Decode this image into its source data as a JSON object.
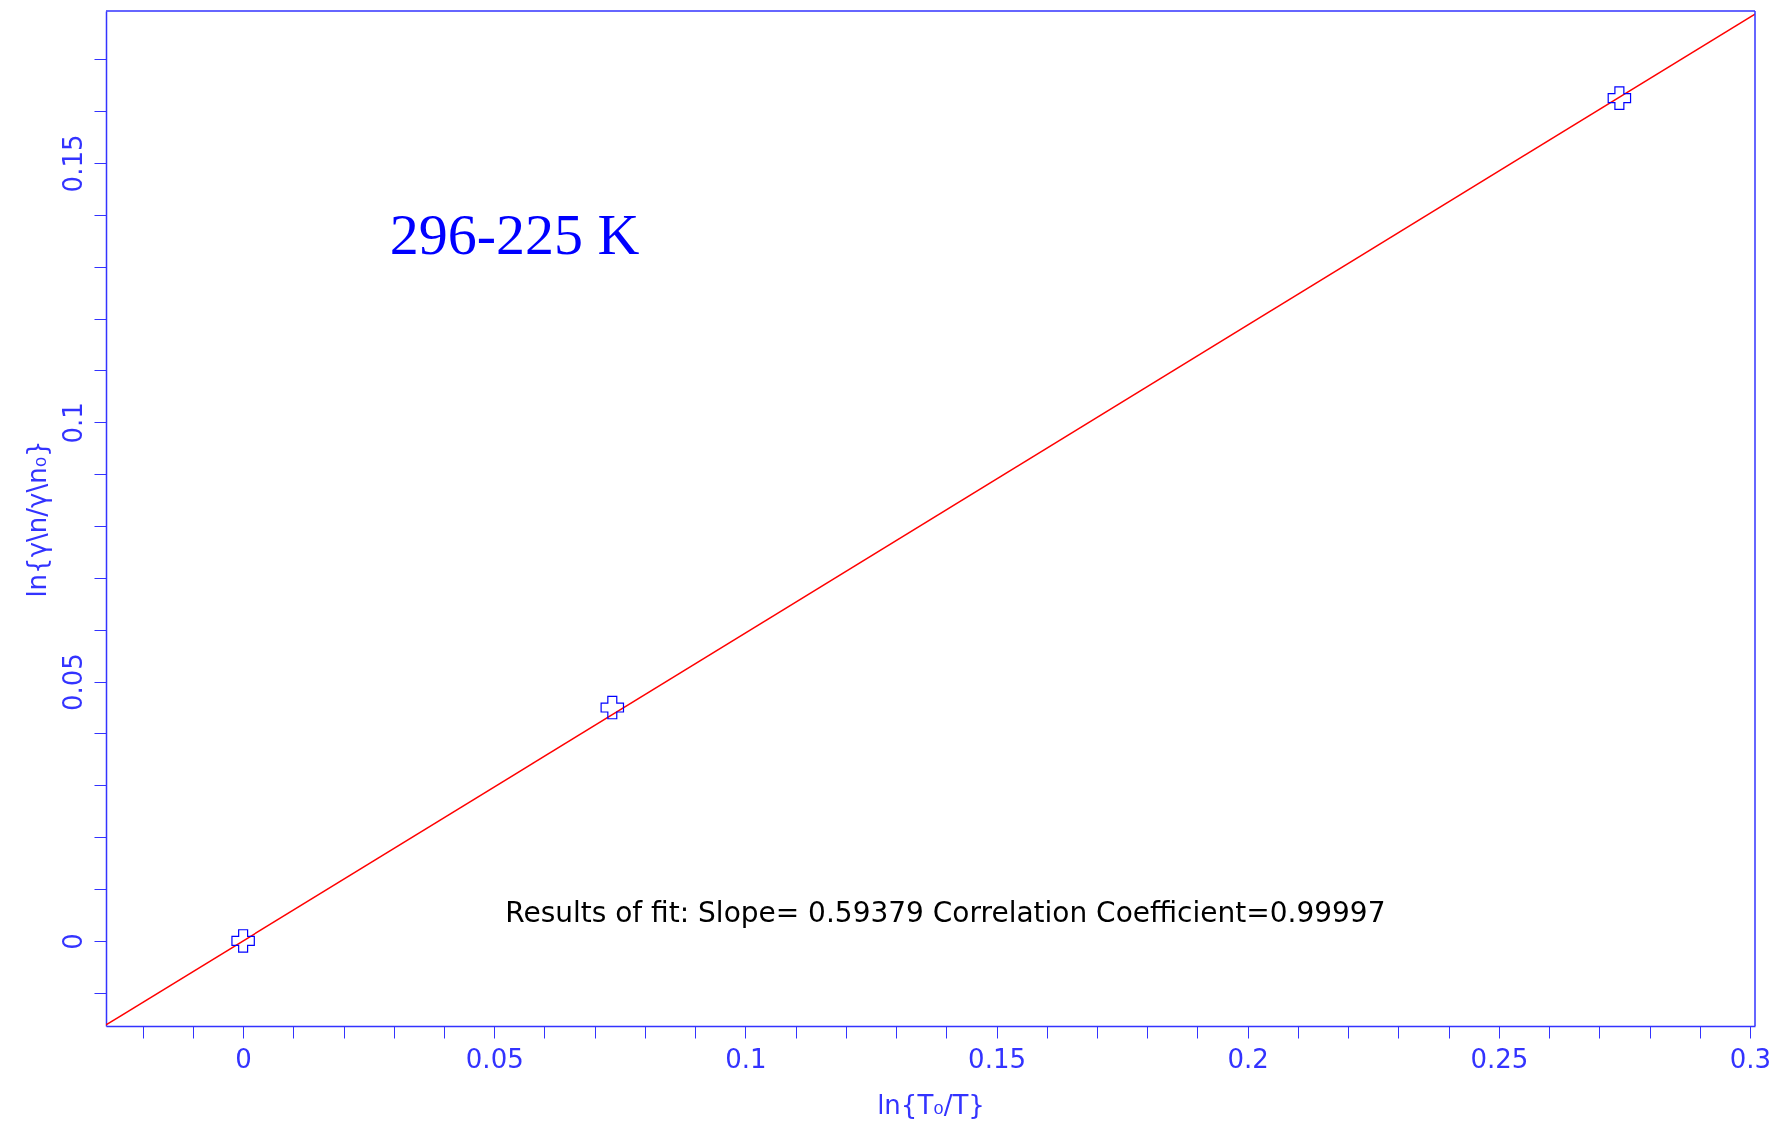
{
  "chart_data": {
    "type": "scatter",
    "xlabel": "ln{T₀/T}",
    "ylabel": "ln{γ\\n/γ\\n₀}",
    "annotations": [
      "296-225 K",
      "Results of fit: Slope=  0.59379  Correlation Coefficient=0.99997"
    ],
    "series": [
      {
        "color": "#0000ff",
        "marker": "cross",
        "x": [
          0,
          0.0735,
          0.274
        ],
        "values": [
          0,
          0.045,
          0.1625
        ]
      },
      {
        "type": "line",
        "color": "#ff0000",
        "line_style": "solid",
        "x": [
          -0.0273,
          0.301
        ],
        "values": [
          -0.0162,
          0.1787
        ]
      }
    ],
    "xlim": [
      -0.0273,
      0.301
    ],
    "ylim": [
      -0.0164,
      0.1793
    ],
    "xticks": [
      {
        "value": -0.02,
        "label": null
      },
      {
        "value": -0.01,
        "label": null
      },
      0,
      {
        "value": 0.01,
        "label": null
      },
      {
        "value": 0.02,
        "label": null
      },
      {
        "value": 0.03,
        "label": null
      },
      {
        "value": 0.04,
        "label": null
      },
      0.05,
      {
        "value": 0.06,
        "label": null
      },
      {
        "value": 0.07,
        "label": null
      },
      {
        "value": 0.08,
        "label": null
      },
      {
        "value": 0.09,
        "label": null
      },
      0.1,
      {
        "value": 0.11,
        "label": null
      },
      {
        "value": 0.12,
        "label": null
      },
      {
        "value": 0.13,
        "label": null
      },
      {
        "value": 0.14,
        "label": null
      },
      0.15,
      {
        "value": 0.16,
        "label": null
      },
      {
        "value": 0.17,
        "label": null
      },
      {
        "value": 0.18,
        "label": null
      },
      {
        "value": 0.19,
        "label": null
      },
      0.2,
      {
        "value": 0.21,
        "label": null
      },
      {
        "value": 0.22,
        "label": null
      },
      {
        "value": 0.23,
        "label": null
      },
      {
        "value": 0.24,
        "label": null
      },
      0.25,
      {
        "value": 0.26,
        "label": null
      },
      {
        "value": 0.27,
        "label": null
      },
      {
        "value": 0.28,
        "label": null
      },
      {
        "value": 0.29,
        "label": null
      },
      0.3
    ],
    "yticks": [
      {
        "value": -0.01,
        "label": null
      },
      0,
      {
        "value": 0.01,
        "label": null
      },
      {
        "value": 0.02,
        "label": null
      },
      {
        "value": 0.03,
        "label": null
      },
      {
        "value": 0.04,
        "label": null
      },
      0.05,
      {
        "value": 0.06,
        "label": null
      },
      {
        "value": 0.07,
        "label": null
      },
      {
        "value": 0.08,
        "label": null
      },
      {
        "value": 0.09,
        "label": null
      },
      0.1,
      {
        "value": 0.11,
        "label": null
      },
      {
        "value": 0.12,
        "label": null
      },
      {
        "value": 0.13,
        "label": null
      },
      {
        "value": 0.14,
        "label": null
      },
      0.15,
      {
        "value": 0.16,
        "label": null
      },
      {
        "value": 0.17,
        "label": null
      }
    ],
    "grid": false
  }
}
